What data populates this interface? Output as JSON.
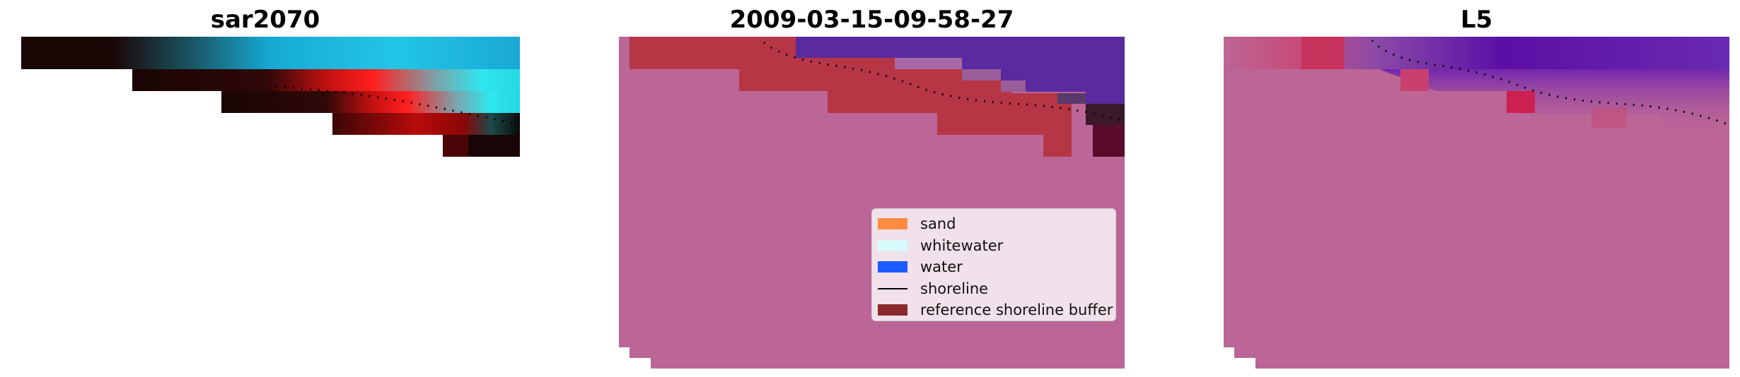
{
  "panels": [
    {
      "title": "sar2070"
    },
    {
      "title": "2009-03-15-09-58-27"
    },
    {
      "title": "L5"
    }
  ],
  "legend": [
    {
      "label": "sand",
      "color": "#ff8c42",
      "kind": "patch"
    },
    {
      "label": "whitewater",
      "color": "#d6fbfb",
      "kind": "patch"
    },
    {
      "label": "water",
      "color": "#1b5cff",
      "kind": "patch"
    },
    {
      "label": "shoreline",
      "color": "#000000",
      "kind": "line"
    },
    {
      "label": "reference shoreline buffer",
      "color": "#8b2a2a",
      "kind": "patch"
    }
  ],
  "colors": {
    "background_pink": "#bb6696",
    "buffer_red": "#b73646",
    "water_purple": "#5a2a9e",
    "shoreline_dots": "#000000"
  }
}
